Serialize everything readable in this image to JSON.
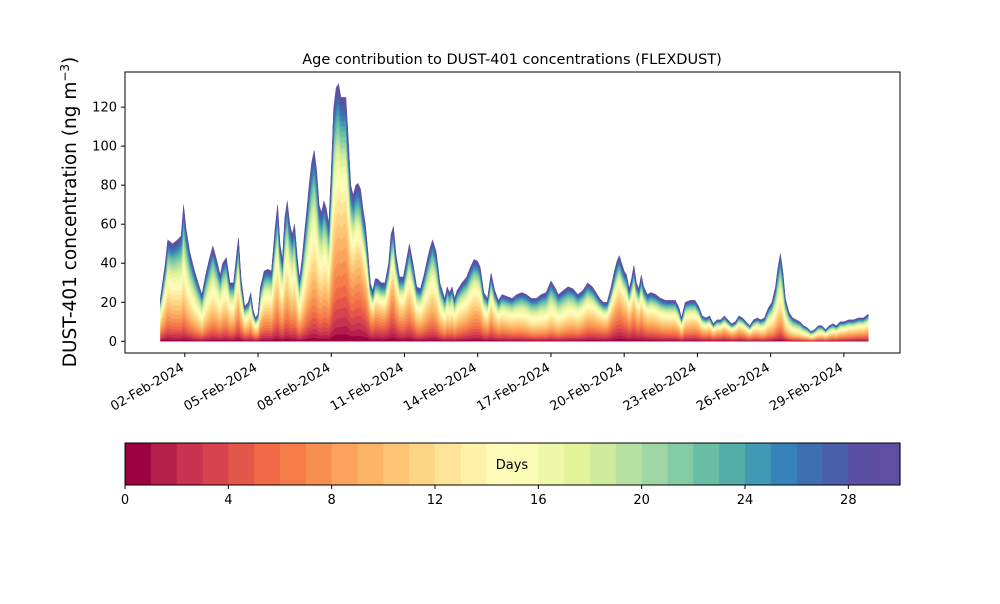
{
  "chart_data": [
    {
      "type": "area",
      "stacked": true,
      "title": "Age contribution to DUST-401 concentrations (FLEXDUST)",
      "ylabel": "DUST-401 concentration (ng m",
      "ylabel_sup": "−3",
      "ylabel_close": ")",
      "xlabel": "",
      "ylim": [
        -6,
        138
      ],
      "xlim_days": [
        -1.45,
        30.3
      ],
      "x_is_date": true,
      "yticks": [
        0,
        20,
        40,
        60,
        80,
        100,
        120
      ],
      "xticks": [
        {
          "day": 1,
          "label": "02-Feb-2024"
        },
        {
          "day": 4,
          "label": "05-Feb-2024"
        },
        {
          "day": 7,
          "label": "08-Feb-2024"
        },
        {
          "day": 10,
          "label": "11-Feb-2024"
        },
        {
          "day": 13,
          "label": "14-Feb-2024"
        },
        {
          "day": 16,
          "label": "17-Feb-2024"
        },
        {
          "day": 19,
          "label": "20-Feb-2024"
        },
        {
          "day": 22,
          "label": "23-Feb-2024"
        },
        {
          "day": 25,
          "label": "26-Feb-2024"
        },
        {
          "day": 28,
          "label": "29-Feb-2024"
        }
      ],
      "layers": 30,
      "total_concentration": [
        [
          0.0,
          22
        ],
        [
          0.2,
          40
        ],
        [
          0.3,
          52
        ],
        [
          0.5,
          50
        ],
        [
          0.7,
          52
        ],
        [
          0.85,
          54
        ],
        [
          0.95,
          70
        ],
        [
          1.05,
          58
        ],
        [
          1.2,
          46
        ],
        [
          1.4,
          36
        ],
        [
          1.55,
          30
        ],
        [
          1.7,
          24
        ],
        [
          1.85,
          34
        ],
        [
          2.0,
          42
        ],
        [
          2.15,
          49
        ],
        [
          2.3,
          42
        ],
        [
          2.45,
          34
        ],
        [
          2.55,
          40
        ],
        [
          2.7,
          43
        ],
        [
          2.85,
          30
        ],
        [
          3.0,
          30
        ],
        [
          3.15,
          48
        ],
        [
          3.2,
          53
        ],
        [
          3.3,
          33
        ],
        [
          3.45,
          18
        ],
        [
          3.6,
          20
        ],
        [
          3.7,
          25
        ],
        [
          3.8,
          16
        ],
        [
          3.9,
          12
        ],
        [
          4.0,
          14
        ],
        [
          4.1,
          28
        ],
        [
          4.25,
          36
        ],
        [
          4.4,
          37
        ],
        [
          4.55,
          36
        ],
        [
          4.7,
          58
        ],
        [
          4.8,
          70
        ],
        [
          4.9,
          50
        ],
        [
          5.0,
          42
        ],
        [
          5.1,
          64
        ],
        [
          5.2,
          72
        ],
        [
          5.3,
          60
        ],
        [
          5.4,
          55
        ],
        [
          5.5,
          60
        ],
        [
          5.6,
          44
        ],
        [
          5.7,
          32
        ],
        [
          5.8,
          42
        ],
        [
          5.9,
          55
        ],
        [
          6.0,
          68
        ],
        [
          6.1,
          81
        ],
        [
          6.2,
          92
        ],
        [
          6.3,
          98
        ],
        [
          6.4,
          88
        ],
        [
          6.5,
          70
        ],
        [
          6.6,
          66
        ],
        [
          6.7,
          72
        ],
        [
          6.8,
          68
        ],
        [
          6.9,
          60
        ],
        [
          7.0,
          88
        ],
        [
          7.1,
          120
        ],
        [
          7.2,
          130
        ],
        [
          7.3,
          132
        ],
        [
          7.4,
          125
        ],
        [
          7.5,
          125
        ],
        [
          7.6,
          125
        ],
        [
          7.7,
          104
        ],
        [
          7.8,
          80
        ],
        [
          7.9,
          75
        ],
        [
          8.0,
          80
        ],
        [
          8.1,
          81
        ],
        [
          8.2,
          78
        ],
        [
          8.3,
          68
        ],
        [
          8.4,
          60
        ],
        [
          8.5,
          46
        ],
        [
          8.6,
          30
        ],
        [
          8.7,
          26
        ],
        [
          8.8,
          32
        ],
        [
          8.9,
          32
        ],
        [
          9.05,
          30
        ],
        [
          9.2,
          30
        ],
        [
          9.35,
          40
        ],
        [
          9.45,
          55
        ],
        [
          9.55,
          59
        ],
        [
          9.65,
          45
        ],
        [
          9.8,
          33
        ],
        [
          9.95,
          33
        ],
        [
          10.1,
          43
        ],
        [
          10.2,
          50
        ],
        [
          10.35,
          40
        ],
        [
          10.5,
          28
        ],
        [
          10.65,
          27
        ],
        [
          10.8,
          34
        ],
        [
          10.95,
          43
        ],
        [
          11.05,
          48
        ],
        [
          11.15,
          52
        ],
        [
          11.3,
          46
        ],
        [
          11.45,
          30
        ],
        [
          11.55,
          26
        ],
        [
          11.65,
          22
        ],
        [
          11.75,
          28
        ],
        [
          11.85,
          25
        ],
        [
          11.95,
          28
        ],
        [
          12.05,
          22
        ],
        [
          12.15,
          26
        ],
        [
          12.35,
          30
        ],
        [
          12.55,
          33
        ],
        [
          12.7,
          38
        ],
        [
          12.85,
          42
        ],
        [
          13.0,
          41
        ],
        [
          13.1,
          38
        ],
        [
          13.25,
          25
        ],
        [
          13.4,
          22
        ],
        [
          13.55,
          35
        ],
        [
          13.7,
          26
        ],
        [
          13.85,
          21
        ],
        [
          14.0,
          24
        ],
        [
          14.2,
          23
        ],
        [
          14.4,
          22
        ],
        [
          14.6,
          24
        ],
        [
          14.8,
          25
        ],
        [
          15.0,
          24
        ],
        [
          15.2,
          22
        ],
        [
          15.4,
          22
        ],
        [
          15.6,
          24
        ],
        [
          15.8,
          25
        ],
        [
          15.9,
          28
        ],
        [
          16.0,
          31
        ],
        [
          16.15,
          28
        ],
        [
          16.3,
          24
        ],
        [
          16.5,
          26
        ],
        [
          16.7,
          28
        ],
        [
          16.9,
          27
        ],
        [
          17.1,
          24
        ],
        [
          17.3,
          26
        ],
        [
          17.5,
          30
        ],
        [
          17.7,
          28
        ],
        [
          17.85,
          25
        ],
        [
          18.0,
          22
        ],
        [
          18.15,
          20
        ],
        [
          18.3,
          20
        ],
        [
          18.45,
          27
        ],
        [
          18.6,
          36
        ],
        [
          18.7,
          41
        ],
        [
          18.8,
          44
        ],
        [
          18.9,
          40
        ],
        [
          19.0,
          36
        ],
        [
          19.1,
          34
        ],
        [
          19.2,
          27
        ],
        [
          19.3,
          32
        ],
        [
          19.4,
          39
        ],
        [
          19.5,
          30
        ],
        [
          19.6,
          27
        ],
        [
          19.7,
          34
        ],
        [
          19.8,
          28
        ],
        [
          19.95,
          24
        ],
        [
          20.1,
          25
        ],
        [
          20.3,
          24
        ],
        [
          20.5,
          22
        ],
        [
          20.7,
          21
        ],
        [
          20.9,
          21
        ],
        [
          21.1,
          21
        ],
        [
          21.25,
          17
        ],
        [
          21.35,
          12
        ],
        [
          21.5,
          20
        ],
        [
          21.7,
          21
        ],
        [
          21.9,
          21
        ],
        [
          22.05,
          18
        ],
        [
          22.2,
          13
        ],
        [
          22.35,
          12
        ],
        [
          22.5,
          13
        ],
        [
          22.65,
          9
        ],
        [
          22.8,
          11
        ],
        [
          22.95,
          11
        ],
        [
          23.1,
          13
        ],
        [
          23.25,
          11
        ],
        [
          23.4,
          9
        ],
        [
          23.55,
          10
        ],
        [
          23.7,
          13
        ],
        [
          23.85,
          12
        ],
        [
          24.0,
          10
        ],
        [
          24.15,
          8
        ],
        [
          24.3,
          11
        ],
        [
          24.45,
          12
        ],
        [
          24.6,
          11
        ],
        [
          24.75,
          12
        ],
        [
          24.9,
          17
        ],
        [
          25.05,
          20
        ],
        [
          25.2,
          28
        ],
        [
          25.3,
          38
        ],
        [
          25.4,
          45
        ],
        [
          25.5,
          36
        ],
        [
          25.6,
          22
        ],
        [
          25.75,
          15
        ],
        [
          25.9,
          12
        ],
        [
          26.05,
          11
        ],
        [
          26.2,
          10
        ],
        [
          26.35,
          8
        ],
        [
          26.5,
          7
        ],
        [
          26.65,
          5
        ],
        [
          26.8,
          6
        ],
        [
          26.95,
          8
        ],
        [
          27.1,
          8
        ],
        [
          27.25,
          6
        ],
        [
          27.4,
          8
        ],
        [
          27.55,
          9
        ],
        [
          27.7,
          8
        ],
        [
          27.85,
          10
        ],
        [
          28.0,
          10
        ],
        [
          28.2,
          11
        ],
        [
          28.4,
          11
        ],
        [
          28.6,
          12
        ],
        [
          28.8,
          12
        ],
        [
          29.0,
          14
        ]
      ],
      "colorbar": {
        "label": "Days",
        "min": 0,
        "max": 30,
        "ticks": [
          0,
          4,
          8,
          12,
          16,
          20,
          24,
          28
        ],
        "colors": [
          "#9e0142",
          "#b51e49",
          "#c93250",
          "#d8434e",
          "#e45649",
          "#ef6a45",
          "#f47d4a",
          "#f88f52",
          "#fba25c",
          "#fdb466",
          "#fdc574",
          "#fed584",
          "#fee496",
          "#fff1a8",
          "#fffbb8",
          "#f9fcb5",
          "#eff8a8",
          "#e2f39c",
          "#cfeb9b",
          "#b7e1a1",
          "#9ed7a4",
          "#83cca5",
          "#69bea6",
          "#53ada9",
          "#4098b2",
          "#3683bb",
          "#3d6eb1",
          "#4a5da9",
          "#5a4fa2",
          "#5e4fa2"
        ]
      }
    }
  ]
}
